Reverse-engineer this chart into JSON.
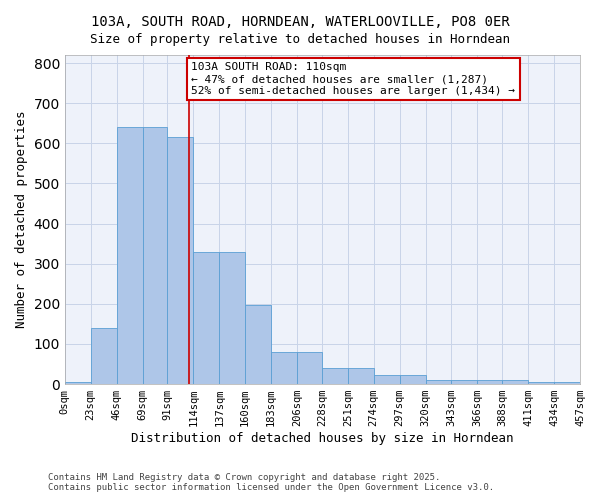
{
  "title_line1": "103A, SOUTH ROAD, HORNDEAN, WATERLOOVILLE, PO8 0ER",
  "title_line2": "Size of property relative to detached houses in Horndean",
  "xlabel": "Distribution of detached houses by size in Horndean",
  "ylabel": "Number of detached properties",
  "footnote_line1": "Contains HM Land Registry data © Crown copyright and database right 2025.",
  "footnote_line2": "Contains public sector information licensed under the Open Government Licence v3.0.",
  "bin_edges": [
    0,
    23,
    46,
    69,
    91,
    114,
    137,
    160,
    183,
    206,
    228,
    251,
    274,
    297,
    320,
    343,
    366,
    388,
    411,
    434,
    457
  ],
  "bin_labels": [
    "0sqm",
    "23sqm",
    "46sqm",
    "69sqm",
    "91sqm",
    "114sqm",
    "137sqm",
    "160sqm",
    "183sqm",
    "206sqm",
    "228sqm",
    "251sqm",
    "274sqm",
    "297sqm",
    "320sqm",
    "343sqm",
    "366sqm",
    "388sqm",
    "411sqm",
    "434sqm",
    "457sqm"
  ],
  "bar_heights": [
    5,
    140,
    640,
    640,
    615,
    330,
    330,
    198,
    80,
    80,
    40,
    40,
    22,
    22,
    10,
    10,
    10,
    10,
    5,
    5
  ],
  "bar_color": "#aec6e8",
  "bar_edge_color": "#5a9fd4",
  "grid_color": "#c8d4e8",
  "background_color": "#eef2fa",
  "vline_x": 110,
  "vline_color": "#cc0000",
  "annotation_text": "103A SOUTH ROAD: 110sqm\n← 47% of detached houses are smaller (1,287)\n52% of semi-detached houses are larger (1,434) →",
  "annotation_box_color": "#cc0000",
  "annotation_fontsize": 8,
  "ylim": [
    0,
    820
  ],
  "yticks": [
    0,
    100,
    200,
    300,
    400,
    500,
    600,
    700,
    800
  ],
  "title_fontsize": 10,
  "xlabel_fontsize": 9,
  "ylabel_fontsize": 9
}
